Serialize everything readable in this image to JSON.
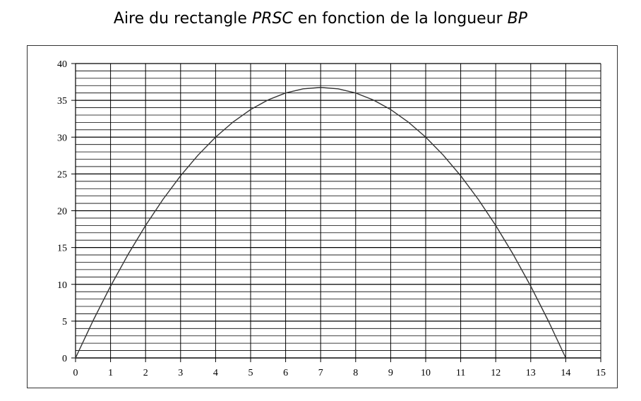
{
  "title": {
    "part1": "Aire du rectangle ",
    "var1": "PRSC",
    "part2": " en fonction de la longueur ",
    "var2": "BP"
  },
  "chart_data": {
    "type": "line",
    "title": "Aire du rectangle PRSC en fonction de la longueur BP",
    "xlabel": "",
    "ylabel": "",
    "xlim": [
      0,
      15
    ],
    "ylim": [
      0,
      40
    ],
    "x_ticks": [
      0,
      1,
      2,
      3,
      4,
      5,
      6,
      7,
      8,
      9,
      10,
      11,
      12,
      13,
      14,
      15
    ],
    "y_ticks": [
      0,
      5,
      10,
      15,
      20,
      25,
      30,
      35,
      40
    ],
    "grid": true,
    "minor_y_step": 1,
    "series": [
      {
        "x": [
          0,
          0.5,
          1,
          1.5,
          2,
          2.5,
          3,
          3.5,
          4,
          4.5,
          5,
          5.5,
          6,
          6.5,
          7,
          7.5,
          8,
          8.5,
          9,
          9.5,
          10,
          10.5,
          11,
          11.5,
          12,
          12.5,
          13,
          13.5,
          14
        ],
        "y": [
          0,
          5.06,
          9.75,
          14.06,
          18,
          21.56,
          24.75,
          27.56,
          30,
          32.06,
          33.75,
          35.06,
          36,
          36.56,
          36.75,
          36.56,
          36,
          35.06,
          33.75,
          32.06,
          30,
          27.56,
          24.75,
          21.56,
          18,
          14.06,
          9.75,
          5.06,
          0
        ]
      }
    ],
    "colors": {
      "curve": "#333333",
      "grid": "#000000"
    }
  }
}
